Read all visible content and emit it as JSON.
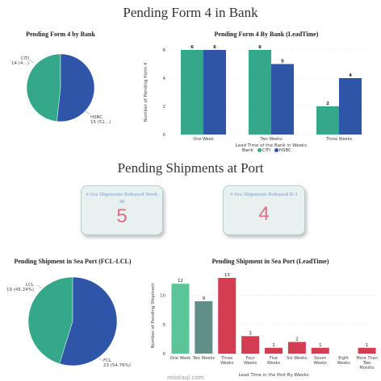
{
  "page": {
    "title": "Pending Form 4 in Bank",
    "section2_title": "Pending Shipments at Port",
    "watermark": "mostaql.com"
  },
  "pie_form4": {
    "title": "Pending Form 4 by Bank",
    "labels": [
      {
        "name": "CITI",
        "detail": "14 (4…)"
      },
      {
        "name": "HSBC",
        "detail": "15 (51…)"
      }
    ]
  },
  "bar_form4": {
    "title": "Pending Form 4 By Bank (LeadTime)",
    "legend_title": "Bank",
    "legend": [
      {
        "name": "CITI",
        "color": "#34a889"
      },
      {
        "name": "HSBC",
        "color": "#2e55a8"
      }
    ]
  },
  "kpis": [
    {
      "label": "# Sea Shipments Released Week 40",
      "value": "5"
    },
    {
      "label": "# Sea Shipments Released D-1",
      "value": "4"
    }
  ],
  "pie_sea": {
    "title": "Pending Shipment in Sea Port (FCL-LCL)",
    "labels": [
      {
        "name": "LCL",
        "detail": "19 (45.24%)"
      },
      {
        "name": "FCL",
        "detail": "23 (54.76%)"
      }
    ]
  },
  "bar_sea": {
    "title": "Pending Shipment in Sea Port (LeadTime)"
  },
  "chart_data": [
    {
      "type": "pie",
      "title": "Pending Form 4 by Bank",
      "categories": [
        "CITI",
        "HSBC"
      ],
      "values": [
        14,
        15
      ],
      "colors": [
        "#34a889",
        "#2e55a8"
      ]
    },
    {
      "type": "bar",
      "title": "Pending Form 4 By Bank (LeadTime)",
      "categories": [
        "One Week",
        "Two Weeks",
        "Three Weeks"
      ],
      "series": [
        {
          "name": "CITI",
          "values": [
            6,
            6,
            2
          ],
          "color": "#34a889"
        },
        {
          "name": "HSBC",
          "values": [
            6,
            5,
            4
          ],
          "color": "#2e55a8"
        }
      ],
      "xlabel": "Lead Time of the Bank in Weeks",
      "ylabel": "Number of Pending Form 4",
      "ylim": [
        0,
        6
      ],
      "yticks": [
        0,
        2,
        4,
        6
      ]
    },
    {
      "type": "pie",
      "title": "Pending Shipment in Sea Port (FCL-LCL)",
      "categories": [
        "LCL",
        "FCL"
      ],
      "values": [
        19,
        23
      ],
      "colors": [
        "#34a889",
        "#2e55a8"
      ]
    },
    {
      "type": "bar",
      "title": "Pending Shipment in Sea Port (LeadTime)",
      "categories": [
        "One Week",
        "Two Weeks",
        "Three Weeks",
        "Four Weeks",
        "Five Weeks",
        "Six Weeks",
        "Seven Weeks",
        "Eight Weeks",
        "More Than Two Months"
      ],
      "values": [
        12,
        9,
        13,
        3,
        1,
        2,
        1,
        null,
        1
      ],
      "value_labels": [
        "12",
        "9",
        "13",
        "3",
        "1",
        "2",
        "1",
        "",
        "1"
      ],
      "colors": [
        "#5cc597",
        "#5f8f86",
        "#d43c52",
        "#d43c52",
        "#d43c52",
        "#d43c52",
        "#d43c52",
        "#d43c52",
        "#d43c52"
      ],
      "xlabel": "Lead Time in the Port By Weeks",
      "ylabel": "Number of Pending Shipment",
      "ylim": [
        0,
        13
      ],
      "yticks": [
        0,
        5,
        10
      ]
    }
  ]
}
